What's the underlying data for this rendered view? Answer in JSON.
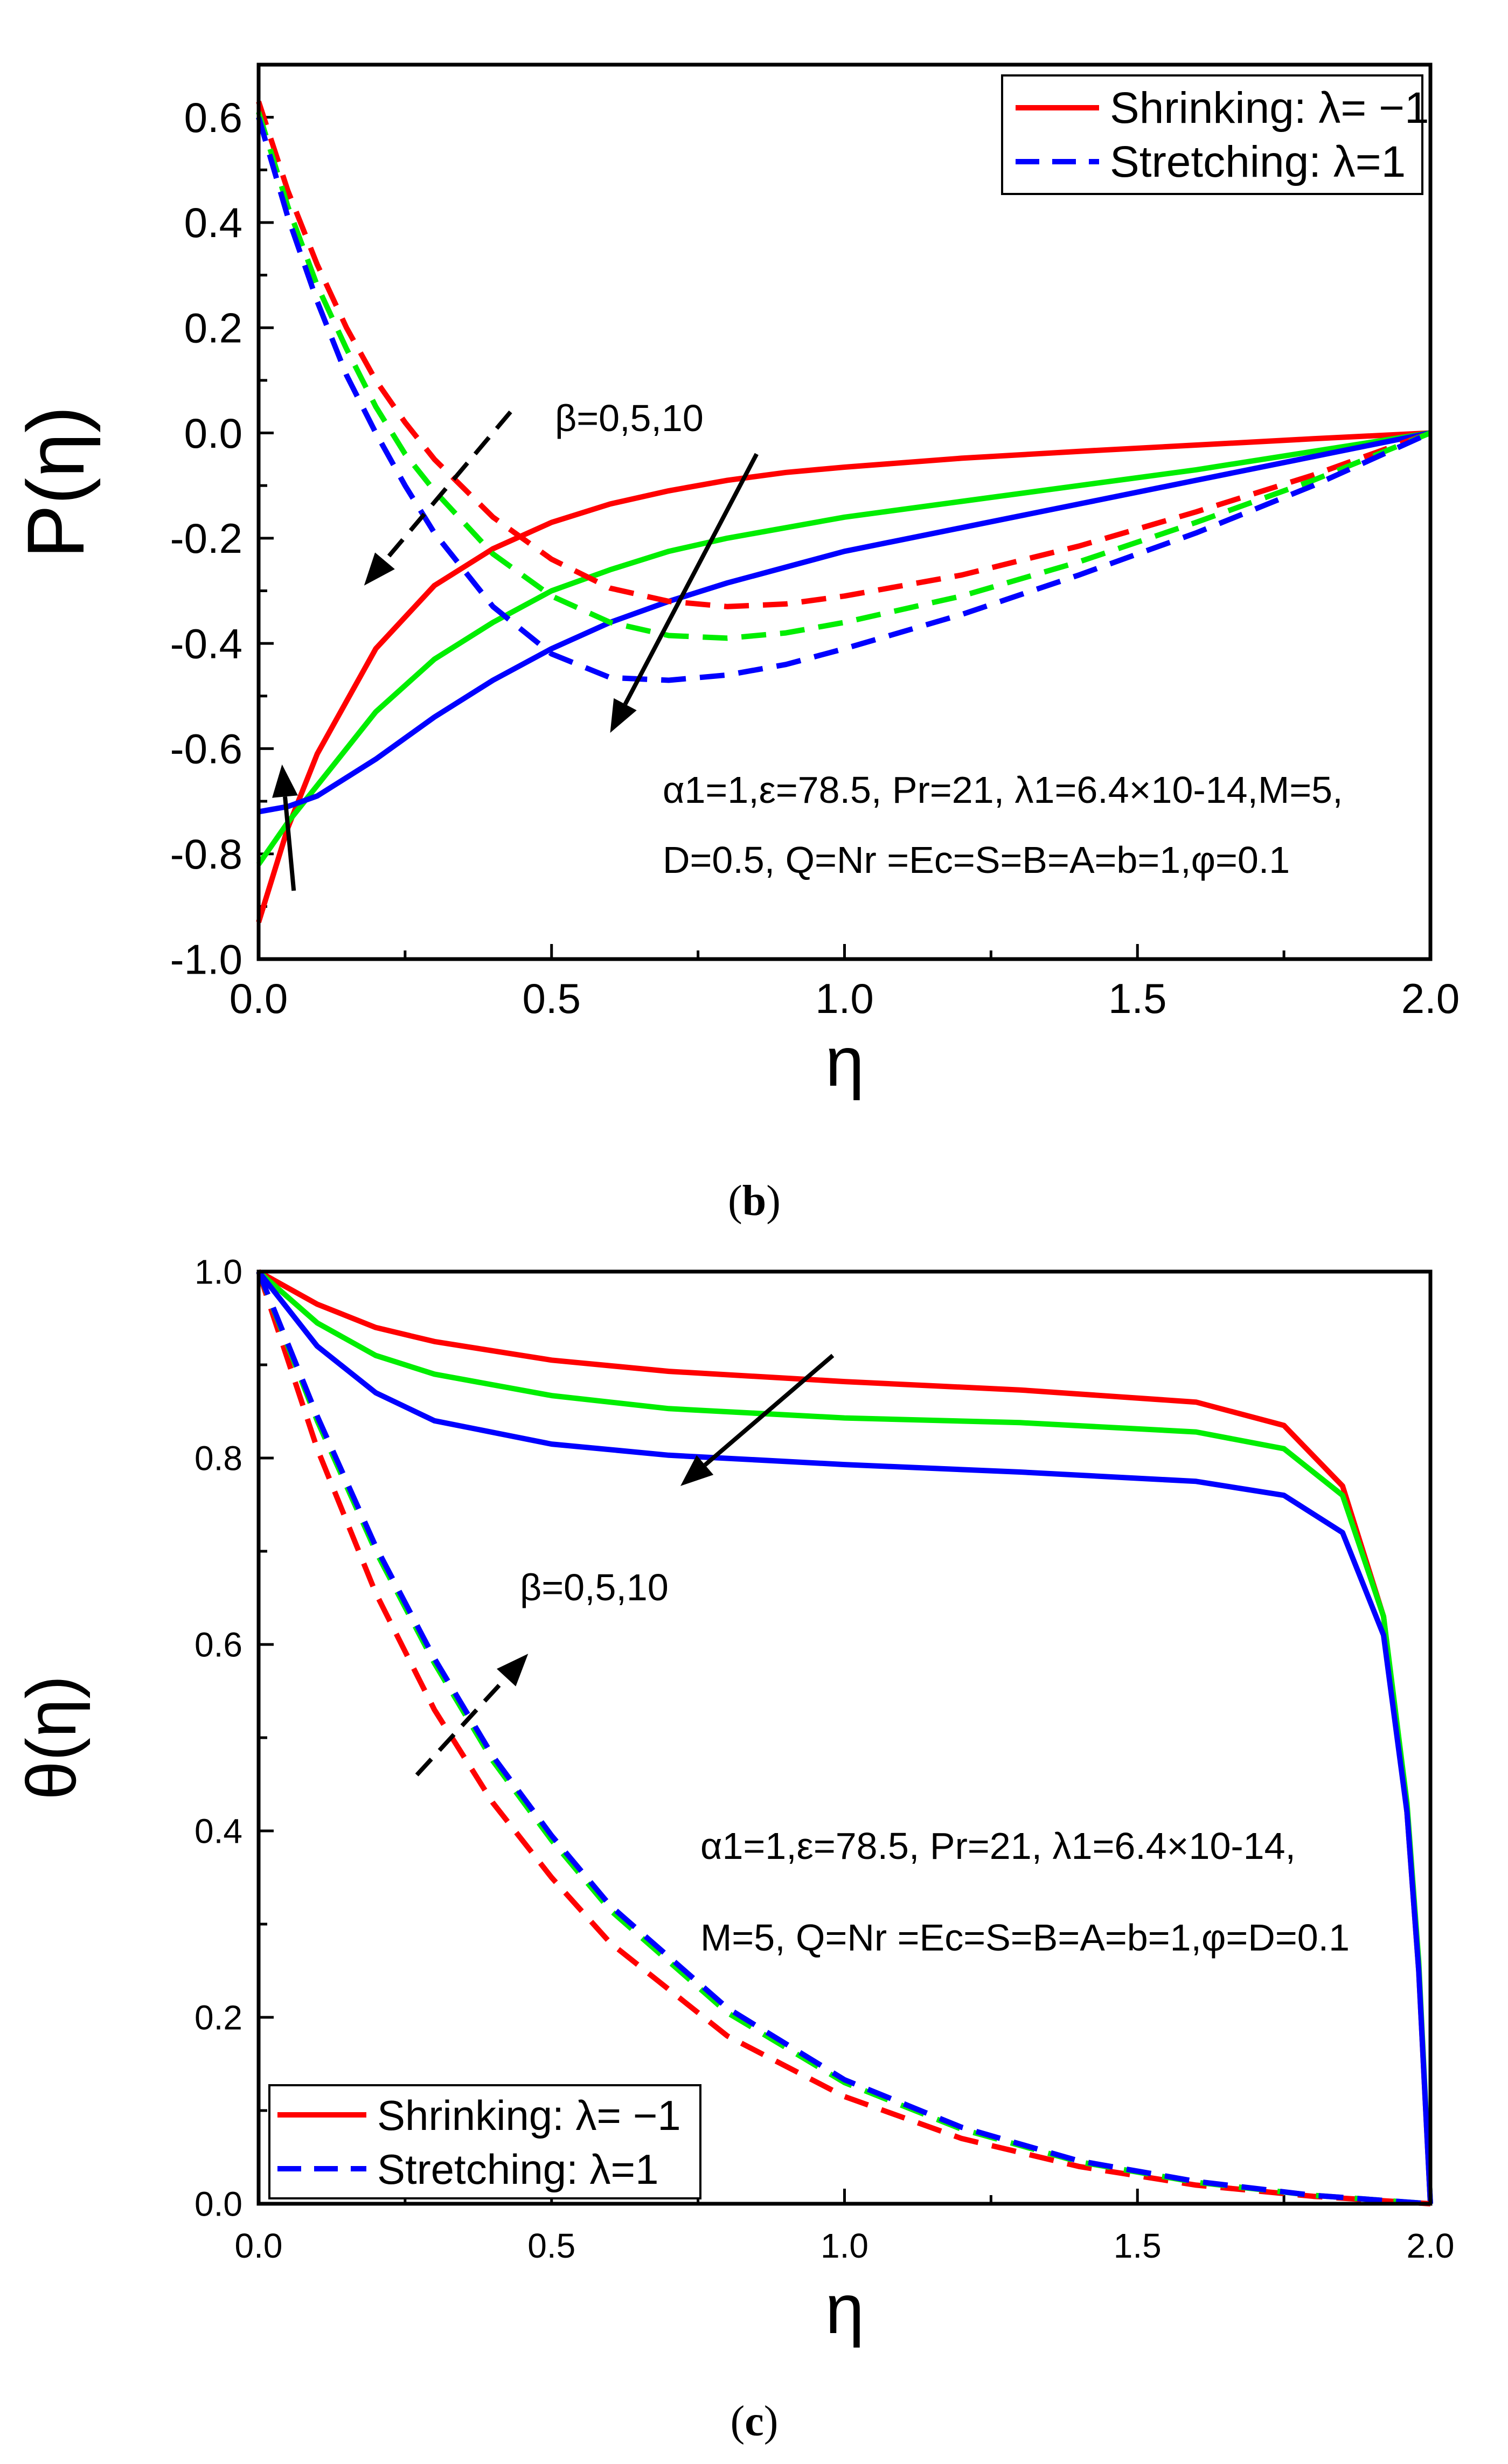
{
  "chart_data": [
    {
      "type": "line",
      "panel": "b",
      "caption_open": "(",
      "caption_letter": "b",
      "caption_close": ")",
      "xlabel": "η",
      "ylabel": "P(η)",
      "xlim": [
        0,
        2
      ],
      "ylim": [
        -1.0,
        0.7
      ],
      "xticks": [
        "0.0",
        "0.5",
        "1.0",
        "1.5",
        "2.0"
      ],
      "yticks": [
        "-1.0",
        "-0.8",
        "-0.6",
        "-0.4",
        "-0.2",
        "0.0",
        "0.2",
        "0.4",
        "0.6"
      ],
      "legend": {
        "position": "top-right",
        "items": [
          {
            "style": "solid",
            "label": "Shrinking: λ= −1"
          },
          {
            "style": "dashed",
            "label": "Stretching: λ=1"
          }
        ]
      },
      "annotations": {
        "beta": "β=0,5,10",
        "params_line1": "α1=1,ε=78.5, Pr=21, λ1=6.4×10-14,M=5,",
        "params_line2": "D=0.5, Q=Nr =Ec=S=B=A=b=1,φ=0.1"
      },
      "colors": {
        "beta_0": "#ff0000",
        "beta_5": "#00ee00",
        "beta_10": "#0000ff"
      },
      "series": [
        {
          "name": "Shrinking β=0",
          "color": "#ff0000",
          "style": "solid",
          "x": [
            0,
            0.05,
            0.1,
            0.2,
            0.3,
            0.4,
            0.5,
            0.6,
            0.7,
            0.8,
            0.9,
            1.0,
            1.2,
            1.4,
            1.6,
            1.8,
            2.0
          ],
          "y": [
            -0.93,
            -0.75,
            -0.61,
            -0.41,
            -0.29,
            -0.22,
            -0.17,
            -0.135,
            -0.11,
            -0.09,
            -0.075,
            -0.065,
            -0.048,
            -0.035,
            -0.023,
            -0.011,
            0.0
          ]
        },
        {
          "name": "Shrinking β=5",
          "color": "#00ee00",
          "style": "solid",
          "x": [
            0,
            0.05,
            0.1,
            0.2,
            0.3,
            0.4,
            0.5,
            0.6,
            0.7,
            0.8,
            0.9,
            1.0,
            1.2,
            1.4,
            1.6,
            1.8,
            2.0
          ],
          "y": [
            -0.82,
            -0.74,
            -0.67,
            -0.53,
            -0.43,
            -0.36,
            -0.3,
            -0.26,
            -0.225,
            -0.2,
            -0.18,
            -0.16,
            -0.13,
            -0.1,
            -0.07,
            -0.035,
            0.0
          ]
        },
        {
          "name": "Shrinking β=10",
          "color": "#0000ff",
          "style": "solid",
          "x": [
            0,
            0.05,
            0.1,
            0.2,
            0.3,
            0.4,
            0.5,
            0.6,
            0.7,
            0.8,
            0.9,
            1.0,
            1.2,
            1.4,
            1.6,
            1.8,
            2.0
          ],
          "y": [
            -0.72,
            -0.71,
            -0.69,
            -0.62,
            -0.54,
            -0.47,
            -0.41,
            -0.36,
            -0.32,
            -0.285,
            -0.255,
            -0.225,
            -0.18,
            -0.135,
            -0.09,
            -0.045,
            0.0
          ]
        },
        {
          "name": "Stretching β=0",
          "color": "#ff0000",
          "style": "dashed",
          "x": [
            0,
            0.05,
            0.1,
            0.15,
            0.2,
            0.25,
            0.3,
            0.4,
            0.5,
            0.6,
            0.7,
            0.8,
            0.9,
            1.0,
            1.2,
            1.4,
            1.6,
            1.8,
            2.0
          ],
          "y": [
            0.63,
            0.46,
            0.32,
            0.2,
            0.1,
            0.02,
            -0.05,
            -0.16,
            -0.24,
            -0.295,
            -0.32,
            -0.33,
            -0.325,
            -0.31,
            -0.27,
            -0.215,
            -0.15,
            -0.08,
            0.0
          ]
        },
        {
          "name": "Stretching β=5",
          "color": "#00ee00",
          "style": "dashed",
          "x": [
            0,
            0.05,
            0.1,
            0.15,
            0.2,
            0.25,
            0.3,
            0.4,
            0.5,
            0.6,
            0.7,
            0.8,
            0.9,
            1.0,
            1.2,
            1.4,
            1.6,
            1.8,
            2.0
          ],
          "y": [
            0.61,
            0.43,
            0.28,
            0.16,
            0.05,
            -0.04,
            -0.11,
            -0.23,
            -0.31,
            -0.36,
            -0.385,
            -0.39,
            -0.38,
            -0.36,
            -0.31,
            -0.245,
            -0.17,
            -0.09,
            0.0
          ]
        },
        {
          "name": "Stretching β=10",
          "color": "#0000ff",
          "style": "dashed",
          "x": [
            0,
            0.05,
            0.1,
            0.15,
            0.2,
            0.25,
            0.3,
            0.4,
            0.5,
            0.6,
            0.7,
            0.8,
            0.9,
            1.0,
            1.2,
            1.4,
            1.6,
            1.8,
            2.0
          ],
          "y": [
            0.6,
            0.41,
            0.25,
            0.11,
            0.0,
            -0.1,
            -0.19,
            -0.33,
            -0.42,
            -0.465,
            -0.47,
            -0.46,
            -0.44,
            -0.41,
            -0.345,
            -0.27,
            -0.19,
            -0.1,
            0.0
          ]
        }
      ]
    },
    {
      "type": "line",
      "panel": "c",
      "caption_open": "(",
      "caption_letter": "c",
      "caption_close": ")",
      "xlabel": "η",
      "ylabel": "θ(η)",
      "xlim": [
        0,
        2
      ],
      "ylim": [
        0,
        1
      ],
      "xticks": [
        "0.0",
        "0.5",
        "1.0",
        "1.5",
        "2.0"
      ],
      "yticks": [
        "0.0",
        "0.2",
        "0.4",
        "0.6",
        "0.8",
        "1.0"
      ],
      "legend": {
        "position": "bottom-left",
        "items": [
          {
            "style": "solid",
            "label": "Shrinking: λ= −1"
          },
          {
            "style": "dashed",
            "label": "Stretching: λ=1"
          }
        ]
      },
      "annotations": {
        "beta": "β=0,5,10",
        "params_line1": "α1=1,ε=78.5, Pr=21, λ1=6.4×10-14,",
        "params_line2": "M=5, Q=Nr =Ec=S=B=A=b=1,φ=D=0.1"
      },
      "colors": {
        "beta_0": "#ff0000",
        "beta_5": "#00ee00",
        "beta_10": "#0000ff"
      },
      "series": [
        {
          "name": "Shrinking β=0",
          "color": "#ff0000",
          "style": "solid",
          "x": [
            0,
            0.1,
            0.2,
            0.3,
            0.5,
            0.7,
            1.0,
            1.3,
            1.6,
            1.75,
            1.85,
            1.92,
            1.96,
            1.98,
            2.0
          ],
          "y": [
            1.0,
            0.965,
            0.94,
            0.925,
            0.905,
            0.893,
            0.882,
            0.873,
            0.86,
            0.835,
            0.77,
            0.63,
            0.42,
            0.25,
            0.0
          ]
        },
        {
          "name": "Shrinking β=5",
          "color": "#00ee00",
          "style": "solid",
          "x": [
            0,
            0.1,
            0.2,
            0.3,
            0.5,
            0.7,
            1.0,
            1.3,
            1.6,
            1.75,
            1.85,
            1.92,
            1.96,
            1.98,
            2.0
          ],
          "y": [
            1.0,
            0.945,
            0.91,
            0.89,
            0.867,
            0.853,
            0.843,
            0.838,
            0.828,
            0.81,
            0.76,
            0.63,
            0.43,
            0.26,
            0.0
          ]
        },
        {
          "name": "Shrinking β=10",
          "color": "#0000ff",
          "style": "solid",
          "x": [
            0,
            0.1,
            0.2,
            0.3,
            0.5,
            0.7,
            1.0,
            1.3,
            1.6,
            1.75,
            1.85,
            1.92,
            1.96,
            1.98,
            2.0
          ],
          "y": [
            1.0,
            0.92,
            0.87,
            0.84,
            0.815,
            0.803,
            0.793,
            0.785,
            0.775,
            0.76,
            0.72,
            0.61,
            0.42,
            0.25,
            0.0
          ]
        },
        {
          "name": "Stretching β=0",
          "color": "#ff0000",
          "style": "dashed",
          "x": [
            0,
            0.1,
            0.2,
            0.3,
            0.4,
            0.5,
            0.6,
            0.8,
            1.0,
            1.2,
            1.4,
            1.6,
            1.8,
            2.0
          ],
          "y": [
            1.0,
            0.81,
            0.655,
            0.53,
            0.43,
            0.35,
            0.28,
            0.18,
            0.115,
            0.07,
            0.04,
            0.02,
            0.008,
            0.0
          ]
        },
        {
          "name": "Stretching β=5",
          "color": "#00ee00",
          "style": "dashed",
          "x": [
            0,
            0.1,
            0.2,
            0.3,
            0.4,
            0.5,
            0.6,
            0.8,
            1.0,
            1.2,
            1.4,
            1.6,
            1.8,
            2.0
          ],
          "y": [
            1.0,
            0.84,
            0.7,
            0.58,
            0.475,
            0.39,
            0.315,
            0.205,
            0.13,
            0.08,
            0.045,
            0.023,
            0.009,
            0.0
          ]
        },
        {
          "name": "Stretching β=10",
          "color": "#0000ff",
          "style": "dashed",
          "x": [
            0,
            0.1,
            0.2,
            0.3,
            0.4,
            0.5,
            0.6,
            0.8,
            1.0,
            1.2,
            1.4,
            1.6,
            1.8,
            2.0
          ],
          "y": [
            1.0,
            0.845,
            0.705,
            0.585,
            0.48,
            0.395,
            0.32,
            0.21,
            0.133,
            0.082,
            0.046,
            0.024,
            0.009,
            0.0
          ]
        }
      ]
    }
  ]
}
